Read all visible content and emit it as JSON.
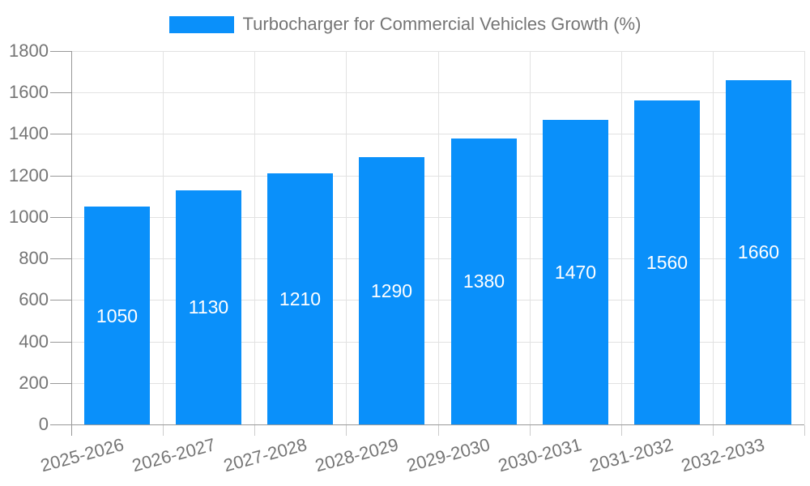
{
  "chart_data": {
    "type": "bar",
    "title": "Turbocharger for Commercial Vehicles Growth (%)",
    "series_name": "Turbocharger for Commercial Vehicles Growth (%)",
    "categories": [
      "2025-2026",
      "2026-2027",
      "2027-2028",
      "2028-2029",
      "2029-2030",
      "2030-2031",
      "2031-2032",
      "2032-2033"
    ],
    "values": [
      1050,
      1130,
      1210,
      1290,
      1380,
      1470,
      1560,
      1660
    ],
    "value_labels_visible": true,
    "xlabel": "",
    "ylabel": "",
    "ylim": [
      0,
      1800
    ],
    "ytick_step": 200,
    "yticks": [
      0,
      200,
      400,
      600,
      800,
      1000,
      1200,
      1400,
      1600,
      1800
    ],
    "grid": true,
    "legend_position": "top",
    "x_label_rotation_deg": -15,
    "colors": {
      "bar": "#0a90fa",
      "value_label": "#ffffff",
      "axis_text": "#757575",
      "legend_text": "#757575",
      "grid": "#e2e2e2",
      "axis_line": "#999999",
      "x_tick": "#cccccc"
    }
  }
}
